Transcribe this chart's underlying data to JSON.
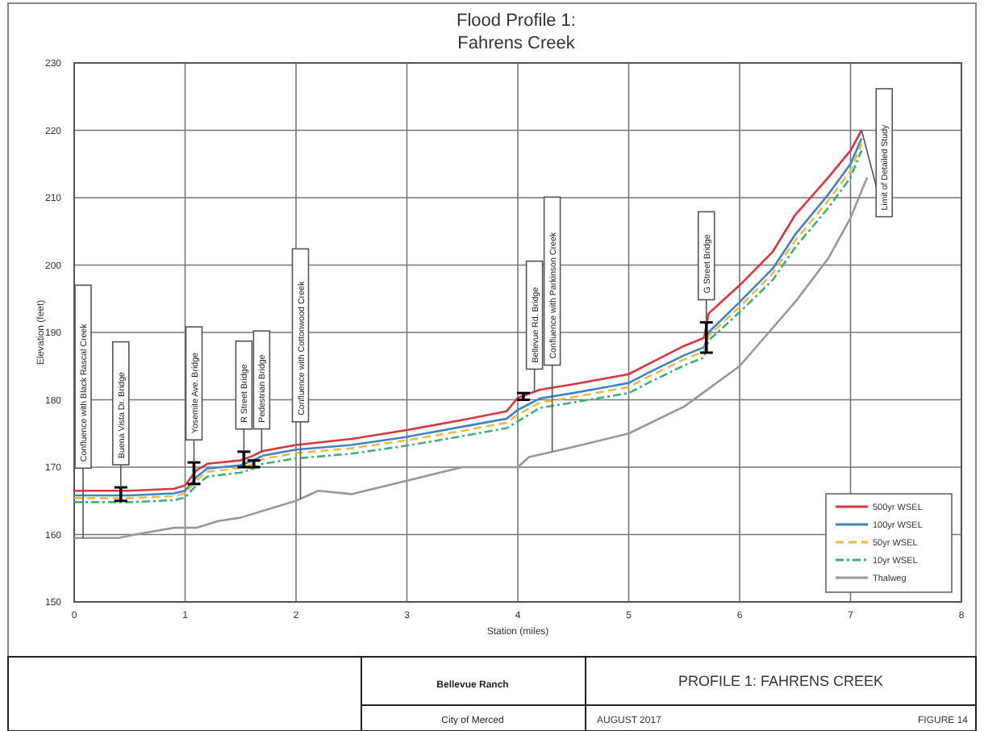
{
  "chart_data": {
    "type": "line",
    "title": "Flood Profile 1:\nFahrens Creek",
    "xlabel": "Station (miles)",
    "ylabel": "Elevation (feet)",
    "xlim": [
      0,
      8
    ],
    "xticks": [
      0,
      1,
      2,
      3,
      4,
      5,
      6,
      7,
      8
    ],
    "ylim": [
      150,
      230
    ],
    "yticks": [
      150,
      160,
      170,
      180,
      190,
      200,
      210,
      220,
      230
    ],
    "grid": true,
    "legend": "bottom right",
    "marker": "none",
    "series": [
      {
        "name": "500yr WSEL",
        "color": "#d9363e",
        "line_style": "solid",
        "x": [
          0,
          0.5,
          0.9,
          1.0,
          1.1,
          1.2,
          1.5,
          1.6,
          1.7,
          2.0,
          2.5,
          3.0,
          3.5,
          3.9,
          4.0,
          4.2,
          4.5,
          5.0,
          5.2,
          5.5,
          5.68,
          5.72,
          6.0,
          6.3,
          6.5,
          6.8,
          7.0,
          7.1
        ],
        "values": [
          166.5,
          166.5,
          166.8,
          167.3,
          169.5,
          170.5,
          171,
          171.6,
          172.4,
          173.3,
          174.2,
          175.5,
          177,
          178.3,
          180.3,
          181.5,
          182.3,
          183.8,
          185.5,
          188,
          189.2,
          192.8,
          197,
          202,
          207.4,
          213,
          217,
          220
        ]
      },
      {
        "name": "100yr WSEL",
        "color": "#3d85c6",
        "line_style": "solid",
        "x": [
          0,
          0.5,
          0.9,
          1.0,
          1.1,
          1.2,
          1.5,
          1.6,
          1.7,
          2.0,
          2.5,
          3.0,
          3.5,
          3.9,
          4.0,
          4.2,
          4.5,
          5.0,
          5.2,
          5.5,
          5.68,
          5.72,
          6.0,
          6.3,
          6.5,
          6.8,
          7.0,
          7.1
        ],
        "values": [
          165.8,
          165.8,
          166.1,
          166.5,
          168.5,
          169.8,
          170.3,
          170.9,
          171.7,
          172.6,
          173.3,
          174.5,
          176,
          177.2,
          178.5,
          180.2,
          181,
          182.5,
          184.2,
          186.6,
          187.8,
          190,
          194.5,
          199.5,
          204.5,
          210.5,
          215,
          218.8
        ]
      },
      {
        "name": "50yr WSEL",
        "color": "#f5b942",
        "line_style": "dashed",
        "x": [
          0,
          0.5,
          0.9,
          1.0,
          1.1,
          1.2,
          1.5,
          1.6,
          1.7,
          2.0,
          2.5,
          3.0,
          3.5,
          3.9,
          4.0,
          4.2,
          4.5,
          5.0,
          5.2,
          5.5,
          5.68,
          5.72,
          6.0,
          6.3,
          6.5,
          6.8,
          7.0,
          7.1
        ],
        "values": [
          165.4,
          165.4,
          165.7,
          166.1,
          168,
          169.3,
          169.9,
          170.4,
          171.2,
          172.1,
          172.8,
          174,
          175.4,
          176.6,
          177.8,
          179.6,
          180.4,
          181.9,
          183.6,
          186,
          187.2,
          189.5,
          193.8,
          198.8,
          203.6,
          209.6,
          214,
          218
        ]
      },
      {
        "name": "10yr WSEL",
        "color": "#3cb371",
        "line_style": "dotted",
        "x": [
          0,
          0.5,
          0.9,
          1.0,
          1.1,
          1.2,
          1.5,
          1.6,
          1.7,
          2.0,
          2.5,
          3.0,
          3.5,
          3.9,
          4.0,
          4.2,
          4.5,
          5.0,
          5.2,
          5.5,
          5.68,
          5.72,
          6.0,
          6.3,
          6.5,
          6.8,
          7.0,
          7.1
        ],
        "values": [
          164.8,
          164.8,
          165.1,
          165.5,
          167.3,
          168.6,
          169.2,
          169.7,
          170.5,
          171.3,
          172,
          173.2,
          174.6,
          175.8,
          176.8,
          178.8,
          179.6,
          181,
          182.7,
          185.1,
          186.3,
          188.8,
          193,
          197.8,
          202.6,
          208.5,
          213,
          217
        ]
      },
      {
        "name": "Thalweg",
        "color": "#999999",
        "line_style": "solid",
        "x": [
          0,
          0.4,
          0.55,
          0.9,
          1.1,
          1.3,
          1.5,
          1.8,
          2.0,
          2.2,
          2.5,
          3.0,
          3.5,
          4.0,
          4.1,
          4.5,
          5.0,
          5.5,
          6.0,
          6.5,
          6.8,
          7.0,
          7.15
        ],
        "values": [
          159.5,
          159.5,
          160,
          161,
          161,
          162,
          162.5,
          164,
          165,
          166.5,
          166,
          168,
          170,
          170,
          171.5,
          173,
          175,
          179,
          185,
          194.5,
          201,
          207,
          213
        ]
      },
      {
        "type": "bar",
        "color": "#000000",
        "x": [
          0.42,
          1.08,
          1.53,
          1.62,
          4.05,
          5.7
        ],
        "base": [
          165,
          167.5,
          170,
          170,
          180,
          187
        ],
        "values": [
          2,
          3.2,
          2.3,
          1,
          1,
          4.5
        ]
      }
    ],
    "annotations": [
      {
        "text": "Confluence with Black Rascal Creek",
        "x": 0.08,
        "y": 159.5
      },
      {
        "text": "Buena Vista Dr. Bridge",
        "x": 0.42,
        "y": 167
      },
      {
        "text": "Yosemite Ave. Bridge",
        "x": 1.08,
        "y": 170.7
      },
      {
        "text": "R Street Bridge",
        "x": 1.53,
        "y": 172.3
      },
      {
        "text": "Pedestrian Bridge",
        "x": 1.69,
        "y": 172.3
      },
      {
        "text": "Confluence with Cottonwood Creek",
        "x": 2.04,
        "y": 165.3
      },
      {
        "text": "Bellevue Rd. Bridge",
        "x": 4.15,
        "y": 181.2
      },
      {
        "text": "Confluence with Parkinson Creek",
        "x": 4.31,
        "y": 172.3
      },
      {
        "text": "G Street Bridge",
        "x": 5.7,
        "y": 191.5
      },
      {
        "text": "Limit of Detailed Study",
        "x": 7.1,
        "y": 220
      },
      "Bellevue Ranch",
      "City of Merced",
      "PROFILE 1: FAHRENS CREEK",
      "AUGUST 2017",
      "FIGURE 14"
    ]
  }
}
